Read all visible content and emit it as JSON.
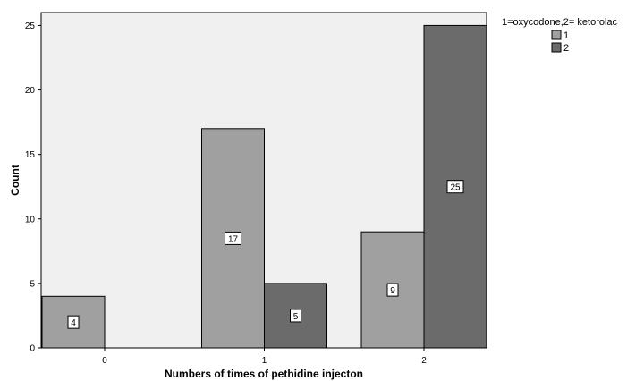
{
  "chart_data": {
    "type": "bar",
    "categories": [
      "0",
      "1",
      "2"
    ],
    "series": [
      {
        "name": "1",
        "color": "#a0a0a0",
        "values": [
          4,
          17,
          9
        ]
      },
      {
        "name": "2",
        "color": "#6b6b6b",
        "values": [
          0,
          5,
          25
        ]
      }
    ],
    "data_labels": [
      [
        "4",
        "17",
        "9"
      ],
      [
        "",
        "5",
        "25"
      ]
    ],
    "xlabel": "Numbers of times of pethidine injecton",
    "ylabel": "Count",
    "ylim": [
      0,
      26
    ],
    "yticks": [
      0,
      5,
      10,
      15,
      20,
      25
    ],
    "legend_title": "1=oxycodone,2= ketorolac",
    "legend_position": "top-right outside",
    "plot_background": "#f0f0f0",
    "grid": false
  }
}
